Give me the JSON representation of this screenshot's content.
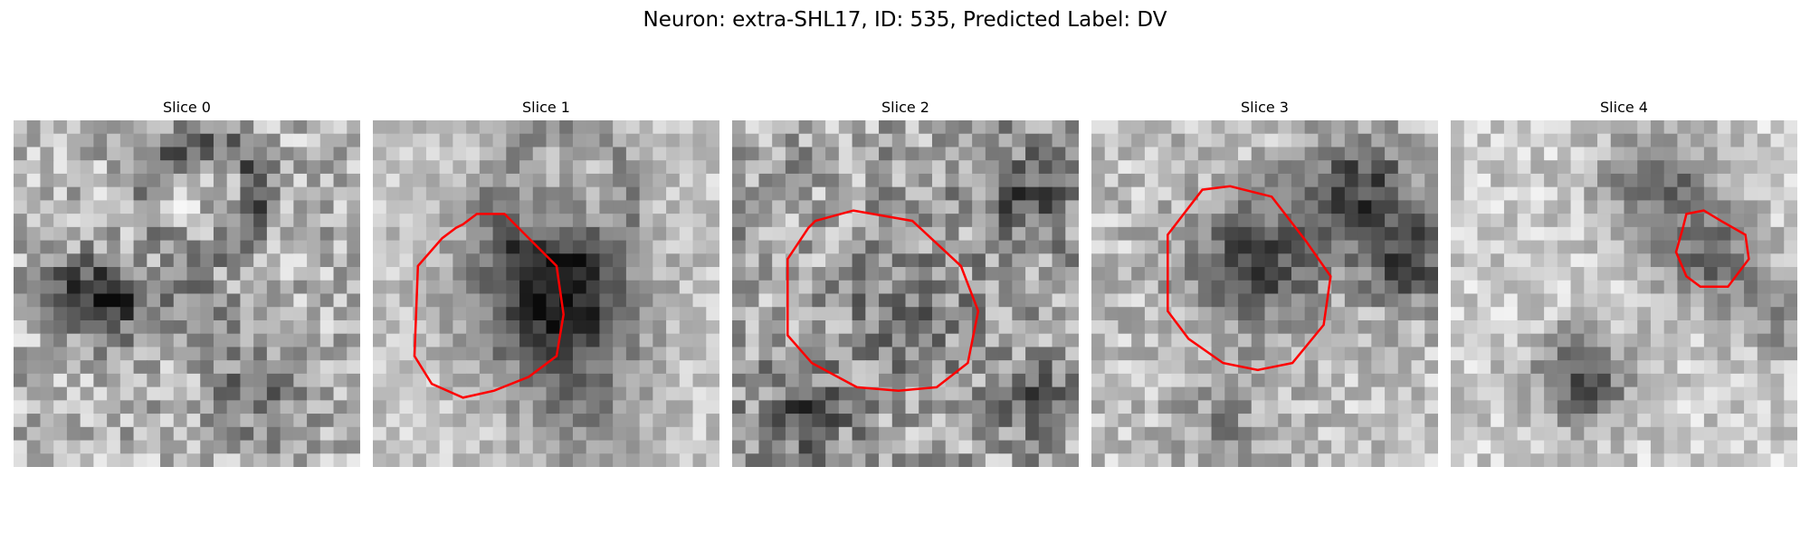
{
  "figure": {
    "title": "Neuron: extra-SHL17, ID: 535, Predicted Label: DV"
  },
  "panels": [
    {
      "title": "Slice 0",
      "has_contour": false,
      "image": "grayscale-microscopy-patch"
    },
    {
      "title": "Slice 1",
      "has_contour": true,
      "image": "grayscale-microscopy-patch"
    },
    {
      "title": "Slice 2",
      "has_contour": true,
      "image": "grayscale-microscopy-patch"
    },
    {
      "title": "Slice 3",
      "has_contour": true,
      "image": "grayscale-microscopy-patch"
    },
    {
      "title": "Slice 4",
      "has_contour": true,
      "image": "grayscale-microscopy-patch"
    }
  ],
  "colors": {
    "contour": "#ff0000",
    "background": "#ffffff"
  }
}
